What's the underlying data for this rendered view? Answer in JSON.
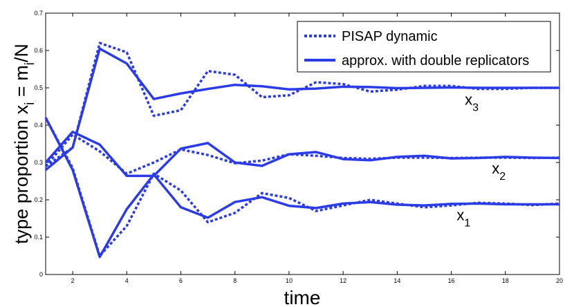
{
  "chart_data": {
    "type": "line",
    "title": "",
    "xlabel": "time",
    "ylabel_parts": [
      "type proportion x",
      "i",
      " = m",
      "i",
      "/N"
    ],
    "xlim": [
      1,
      20
    ],
    "ylim": [
      0,
      0.7
    ],
    "grid": false,
    "legend_position": "top-right",
    "x_ticks": [
      2,
      4,
      6,
      8,
      10,
      12,
      14,
      16,
      18,
      20
    ],
    "y_ticks": [
      0,
      0.1,
      0.2,
      0.3,
      0.4,
      0.5,
      0.6,
      0.7
    ],
    "y_tick_labels": [
      "0",
      "0.1",
      "0.2",
      "0.3",
      "0.4",
      "0.5",
      "0.6",
      "0.7"
    ],
    "x": [
      1,
      2,
      3,
      4,
      5,
      6,
      7,
      8,
      9,
      10,
      11,
      12,
      13,
      14,
      15,
      16,
      17,
      18,
      19,
      20
    ],
    "color": "#2b3be6",
    "legend": [
      {
        "label": "PISAP dynamic",
        "style": "dotted"
      },
      {
        "label": "approx. with double replicators",
        "style": "solid"
      }
    ],
    "series": [
      {
        "name": "x3 PISAP dynamic",
        "style": "dotted",
        "values": [
          0.29,
          0.34,
          0.62,
          0.595,
          0.425,
          0.44,
          0.545,
          0.535,
          0.475,
          0.48,
          0.515,
          0.51,
          0.49,
          0.495,
          0.505,
          0.505,
          0.497,
          0.497,
          0.5,
          0.5
        ]
      },
      {
        "name": "x3 approx. with double replicators",
        "style": "solid",
        "values": [
          0.28,
          0.34,
          0.605,
          0.565,
          0.47,
          0.485,
          0.497,
          0.508,
          0.504,
          0.496,
          0.498,
          0.503,
          0.502,
          0.499,
          0.5,
          0.501,
          0.5,
          0.5,
          0.5,
          0.5
        ]
      },
      {
        "name": "x2 PISAP dynamic",
        "style": "dotted",
        "values": [
          0.29,
          0.375,
          0.33,
          0.27,
          0.3,
          0.335,
          0.32,
          0.298,
          0.305,
          0.322,
          0.318,
          0.312,
          0.31,
          0.313,
          0.313,
          0.312,
          0.313,
          0.313,
          0.312,
          0.313
        ]
      },
      {
        "name": "x2 approx. with double replicators",
        "style": "solid",
        "values": [
          0.3,
          0.382,
          0.348,
          0.264,
          0.264,
          0.337,
          0.352,
          0.3,
          0.291,
          0.322,
          0.328,
          0.309,
          0.306,
          0.315,
          0.318,
          0.311,
          0.312,
          0.315,
          0.313,
          0.312
        ]
      },
      {
        "name": "x1 PISAP dynamic",
        "style": "dotted",
        "values": [
          0.42,
          0.285,
          0.05,
          0.13,
          0.27,
          0.225,
          0.14,
          0.165,
          0.218,
          0.205,
          0.17,
          0.185,
          0.2,
          0.19,
          0.18,
          0.185,
          0.192,
          0.19,
          0.186,
          0.19
        ]
      },
      {
        "name": "x1 approx. with double replicators",
        "style": "solid",
        "values": [
          0.42,
          0.28,
          0.047,
          0.175,
          0.268,
          0.18,
          0.152,
          0.194,
          0.207,
          0.184,
          0.178,
          0.19,
          0.194,
          0.187,
          0.185,
          0.189,
          0.19,
          0.188,
          0.188,
          0.188
        ]
      }
    ],
    "annotations": [
      {
        "base": "x",
        "sub": "3",
        "at_x": 16.5,
        "at_y": 0.455
      },
      {
        "base": "x",
        "sub": "2",
        "at_x": 17.5,
        "at_y": 0.27
      },
      {
        "base": "x",
        "sub": "1",
        "at_x": 16.2,
        "at_y": 0.145
      }
    ]
  }
}
